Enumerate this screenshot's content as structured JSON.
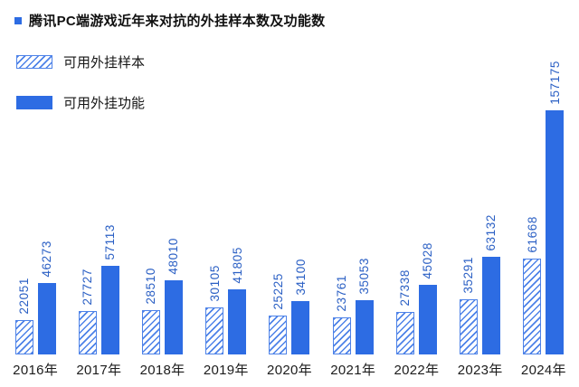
{
  "title": {
    "text": "腾讯PC端游戏近年来对抗的外挂样本数及功能数",
    "bullet_color": "#2d6ce3"
  },
  "legend": {
    "position": "top-left",
    "items": [
      {
        "label": "可用外挂样本",
        "style": "hatched"
      },
      {
        "label": "可用外挂功能",
        "style": "solid"
      }
    ]
  },
  "colors": {
    "primary": "#2d6ce3",
    "hatch_line": "#4d82e8",
    "value_label_text": "#2a5fc4",
    "axis_label_text": "#1c1c1c"
  },
  "chart_data": {
    "type": "bar",
    "title": "腾讯PC端游戏近年来对抗的外挂样本数及功能数",
    "categories": [
      "2016年",
      "2017年",
      "2018年",
      "2019年",
      "2020年",
      "2021年",
      "2022年",
      "2023年",
      "2024年"
    ],
    "series": [
      {
        "name": "可用外挂样本",
        "style": "hatched",
        "values": [
          22051,
          27727,
          28510,
          30105,
          25225,
          23761,
          27338,
          35291,
          61668
        ]
      },
      {
        "name": "可用外挂功能",
        "style": "solid",
        "values": [
          46273,
          57113,
          48010,
          41805,
          34100,
          35053,
          45028,
          63132,
          157175
        ]
      }
    ],
    "xlabel": "",
    "ylabel": "",
    "ylim": [
      0,
      157175
    ],
    "grid": false,
    "legend_position": "top-left",
    "value_labels": "rotated-90-above-bars"
  }
}
